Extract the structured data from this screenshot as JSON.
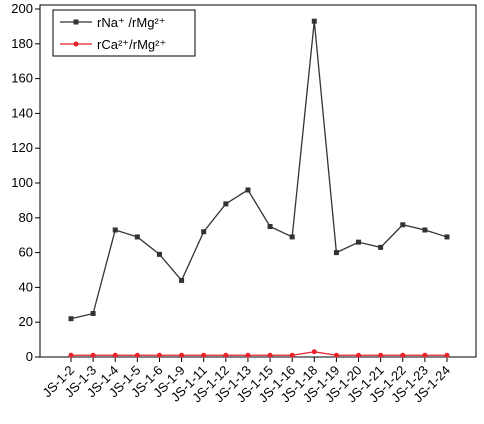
{
  "chart_data": {
    "type": "line",
    "categories": [
      "JS-1-2",
      "JS-1-3",
      "JS-1-4",
      "JS-1-5",
      "JS-1-6",
      "JS-1-9",
      "JS-1-11",
      "JS-1-12",
      "JS-1-13",
      "JS-1-15",
      "JS-1-16",
      "JS-1-18",
      "JS-1-19",
      "JS-1-20",
      "JS-1-21",
      "JS-1-22",
      "JS-1-23",
      "JS-1-24"
    ],
    "series": [
      {
        "name": "rNa⁺ /rMg²⁺",
        "color": "#333333",
        "marker": "square",
        "values": [
          22,
          25,
          73,
          69,
          59,
          44,
          72,
          88,
          96,
          75,
          69,
          193,
          60,
          66,
          63,
          76,
          73,
          69
        ]
      },
      {
        "name": "rCa²⁺/rMg²⁺",
        "color": "#e8222c",
        "marker": "circle",
        "values": [
          1,
          1,
          1,
          1,
          1,
          1,
          1,
          1,
          1,
          1,
          1,
          3,
          1,
          1,
          1,
          1,
          1,
          1
        ]
      }
    ],
    "ylim": [
      0,
      200
    ],
    "yticks": [
      0,
      20,
      40,
      60,
      80,
      100,
      120,
      140,
      160,
      180,
      200
    ],
    "legend": "upper left"
  }
}
